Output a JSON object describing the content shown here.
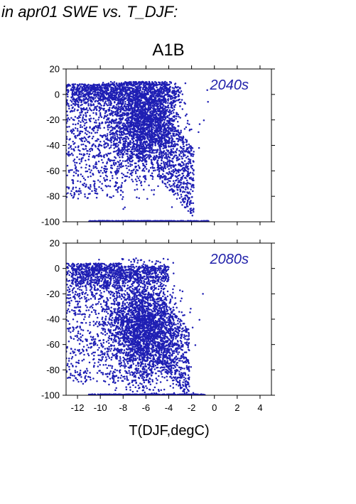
{
  "figure": {
    "title": "in apr01 SWE vs. T_DJF:",
    "scenario": "A1B",
    "xlabel": "T(DJF,degC)"
  },
  "colors": {
    "points": "#1f1fb4",
    "panel_label": "#2222aa",
    "frame": "#000000"
  },
  "chart_data": [
    {
      "type": "scatter",
      "panel_label": "2040s",
      "xlim": [
        -13,
        5
      ],
      "ylim": [
        -100,
        20
      ],
      "xticks": [
        -12,
        -10,
        -8,
        -6,
        -4,
        -2,
        0,
        2,
        4
      ],
      "yticks": [
        20,
        0,
        -20,
        -40,
        -60,
        -80,
        -100
      ],
      "tick_labels_x_shown": false,
      "grid": false,
      "point_cloud": {
        "x_range": [
          -13,
          -0.5
        ],
        "y_range": [
          -100,
          10
        ],
        "floor_value": -100,
        "dense_cluster_x": [
          -8,
          -4
        ],
        "dense_cluster_y": [
          -60,
          5
        ]
      }
    },
    {
      "type": "scatter",
      "panel_label": "2080s",
      "xlim": [
        -13,
        5
      ],
      "ylim": [
        -100,
        20
      ],
      "xticks": [
        -12,
        -10,
        -8,
        -6,
        -4,
        -2,
        0,
        2,
        4
      ],
      "yticks": [
        20,
        0,
        -20,
        -40,
        -60,
        -80,
        -100
      ],
      "tick_labels_x_shown": true,
      "grid": false,
      "point_cloud": {
        "x_range": [
          -13,
          -0.8
        ],
        "y_range": [
          -100,
          8
        ],
        "floor_value": -100,
        "dense_cluster_x": [
          -8,
          -4
        ],
        "dense_cluster_y": [
          -80,
          -20
        ]
      }
    }
  ]
}
